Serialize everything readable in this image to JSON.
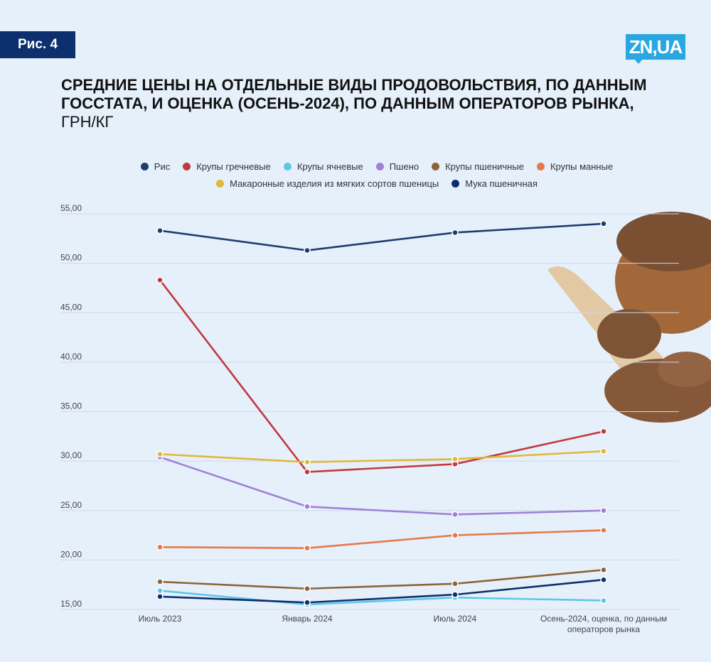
{
  "figure_label": "Рис. 4",
  "logo_text": "ZN,UA",
  "title": {
    "main": "СРЕДНИЕ ЦЕНЫ НА ОТДЕЛЬНЫЕ ВИДЫ ПРОДОВОЛЬСТВИЯ, ПО ДАННЫМ ГОССТАТА, И ОЦЕНКА (ОСЕНЬ-2024), ПО ДАННЫМ ОПЕРАТОРОВ РЫНКА,",
    "unit": "ГРН/КГ"
  },
  "chart_data": {
    "type": "line",
    "categories": [
      "Июль 2023",
      "Январь 2024",
      "Июль 2024",
      "Осень-2024, оценка, по данным операторов рынка"
    ],
    "y_ticks": [
      "15,00",
      "20,00",
      "25,00",
      "30,00",
      "35,00",
      "40,00",
      "45,00",
      "50,00",
      "55,00"
    ],
    "ylim": [
      15,
      55
    ],
    "grid": true,
    "legend_position": "top",
    "series": [
      {
        "name": "Рис",
        "color": "#1e3d6e",
        "values": [
          53.3,
          51.3,
          53.1,
          54.0
        ]
      },
      {
        "name": "Крупы гречневые",
        "color": "#c0393f",
        "values": [
          48.3,
          28.9,
          29.7,
          33.0
        ]
      },
      {
        "name": "Крупы ячневые",
        "color": "#5ec7e8",
        "values": [
          16.9,
          15.5,
          16.2,
          15.9
        ]
      },
      {
        "name": "Пшено",
        "color": "#a17fd6",
        "values": [
          30.4,
          25.4,
          24.6,
          25.0
        ]
      },
      {
        "name": "Крупы пшеничные",
        "color": "#8b6437",
        "values": [
          17.8,
          17.1,
          17.6,
          19.0
        ]
      },
      {
        "name": "Крупы манные",
        "color": "#e8784a",
        "values": [
          21.3,
          21.2,
          22.5,
          23.0
        ]
      },
      {
        "name": "Макаронные изделия из мягких сортов пшеницы",
        "color": "#e0b93a",
        "values": [
          30.7,
          29.9,
          30.2,
          31.0
        ]
      },
      {
        "name": "Мука пшеничная",
        "color": "#0b2f6e",
        "values": [
          16.3,
          15.7,
          16.5,
          18.0
        ]
      }
    ]
  }
}
